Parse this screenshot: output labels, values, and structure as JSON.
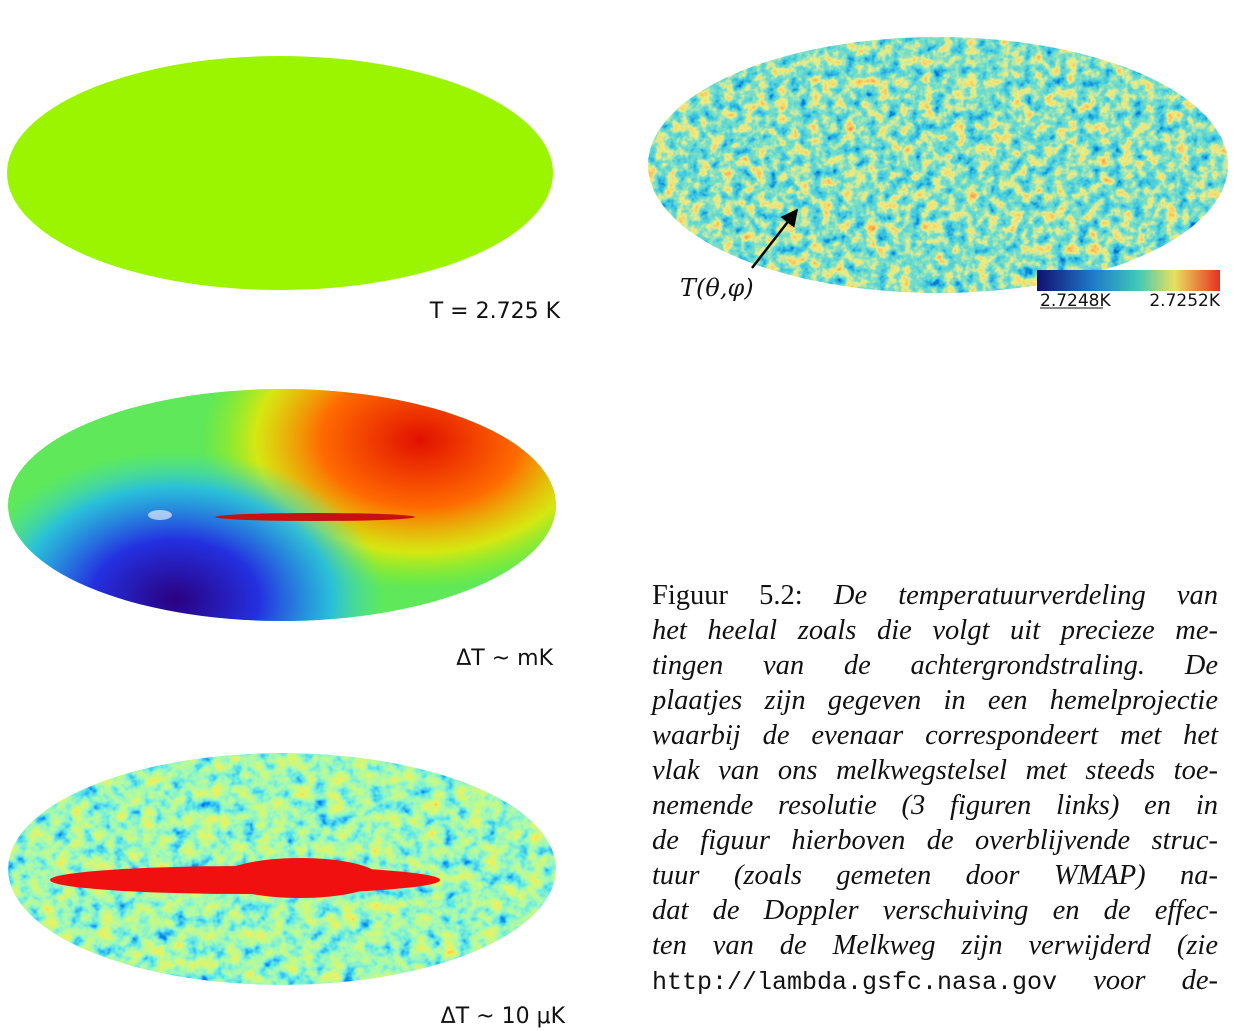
{
  "panels": [
    {
      "label": "T = 2.725 K"
    },
    {
      "label": "ΔT ~ mK"
    },
    {
      "label": "ΔT ~ 10 μK"
    },
    {
      "label": "T(θ,φ)",
      "colorbar": [
        "2.7248K",
        "2.7252K"
      ]
    }
  ],
  "caption": {
    "label": "Figuur 5.2:",
    "lines": [
      "De temperatuurverdeling van",
      "het heelal zoals die volgt uit precieze me-",
      "tingen van de achtergrondstraling. De",
      "plaatjes zijn gegeven in een hemelprojectie",
      "waarbij de evenaar correspondeert met het",
      "vlak van ons melkwegstelsel met steeds toe-",
      "nemende resolutie (3 figuren links) en in",
      "de figuur hierboven de overblijvende struc-",
      "tuur (zoals gemeten door WMAP) na-",
      "dat de Doppler verschuiving en de effec-",
      "ten van de Melkweg zijn verwijderd (zie"
    ],
    "url": "http://lambda.gsfc.nasa.gov",
    "tail": "voor de-"
  }
}
